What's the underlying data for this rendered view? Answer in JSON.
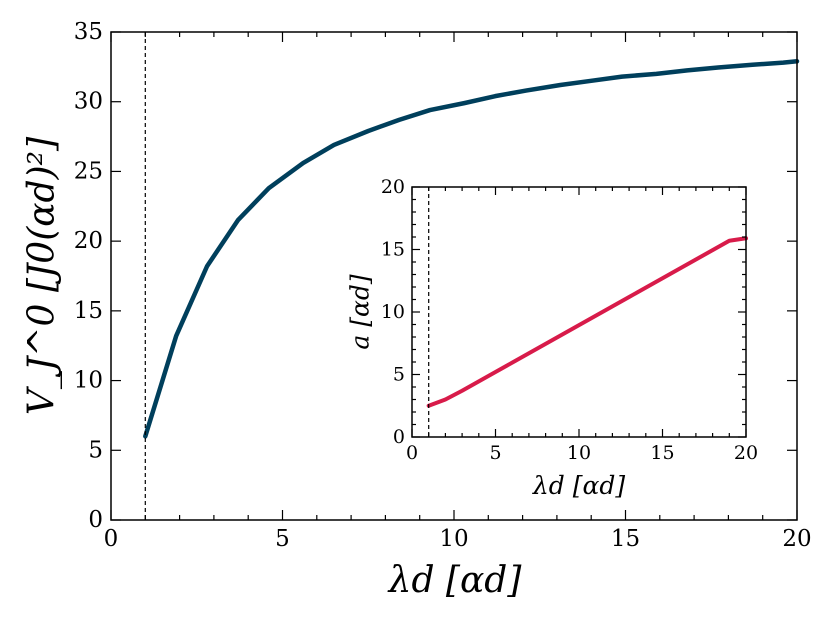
{
  "chart_data": [
    {
      "id": "main",
      "type": "line",
      "title": "",
      "xlabel": "λd [αd]",
      "ylabel": "V_J^0 [J0(αd)²]",
      "xlim": [
        0,
        20
      ],
      "ylim": [
        0,
        35
      ],
      "xticks": [
        0,
        5,
        10,
        15,
        20
      ],
      "yticks": [
        0,
        5,
        10,
        15,
        20,
        25,
        30,
        35
      ],
      "grid": false,
      "legend": "none",
      "vline_x": 1,
      "series": [
        {
          "color": "#003f5c",
          "x": [
            1,
            1.9,
            2.8,
            3.7,
            4.6,
            5.6,
            6.5,
            7.5,
            8.4,
            9.3,
            10.3,
            11.2,
            12.1,
            13.1,
            14,
            14.9,
            15.9,
            16.8,
            17.7,
            18.7,
            19.6,
            20
          ],
          "y": [
            6,
            13.2,
            18.2,
            21.5,
            23.8,
            25.6,
            26.9,
            27.9,
            28.7,
            29.4,
            29.9,
            30.4,
            30.8,
            31.2,
            31.5,
            31.8,
            32.0,
            32.25,
            32.45,
            32.65,
            32.8,
            32.9
          ]
        }
      ]
    },
    {
      "id": "inset",
      "type": "line",
      "title": "",
      "xlabel": "λd [αd]",
      "ylabel": "a [αd]",
      "xlim": [
        0,
        20
      ],
      "ylim": [
        0,
        20
      ],
      "xticks": [
        0,
        5,
        10,
        15,
        20
      ],
      "yticks": [
        0,
        5,
        10,
        15,
        20
      ],
      "grid": false,
      "legend": "none",
      "vline_x": 1,
      "series": [
        {
          "color": "#d81b4a",
          "x": [
            1,
            2,
            3,
            4,
            5,
            6,
            7,
            8,
            9,
            10,
            11,
            12,
            13,
            14,
            15,
            16,
            17,
            18,
            19,
            20
          ],
          "y": [
            2.5,
            3.0,
            3.7,
            4.45,
            5.2,
            5.95,
            6.7,
            7.45,
            8.2,
            8.95,
            9.7,
            10.45,
            11.2,
            11.95,
            12.7,
            13.45,
            14.2,
            14.95,
            15.7,
            15.9
          ]
        }
      ]
    }
  ]
}
